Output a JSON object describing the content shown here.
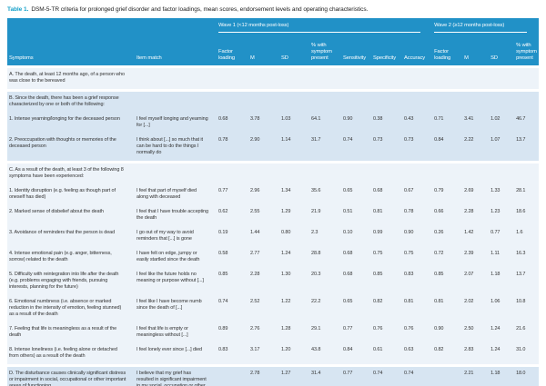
{
  "colors": {
    "header_bg": "#2191c7",
    "header_text": "#ffffff",
    "shade_blue": "#d7e5f2",
    "shade_light": "#edf3f9",
    "title_accent": "#14a0c9"
  },
  "title": {
    "label": "Table 1.",
    "text": "DSM-5-TR criteria for prolonged grief disorder and factor loadings, mean scores, endorsement levels and operating characteristics."
  },
  "table": {
    "spanners": [
      {
        "label": "Wave 1 (<12 months post-loss)",
        "span": 7
      },
      {
        "label": "Wave 2 (≥12 months post-loss)",
        "span": 4
      }
    ],
    "columns": [
      "Symptoms",
      "Item match",
      "Factor loading",
      "M",
      "SD",
      "% with symptom present",
      "Sensitivity",
      "Specificity",
      "Accuracy",
      "Factor loading",
      "M",
      "SD",
      "% with symptom present"
    ],
    "blocks": [
      {
        "id": "a",
        "shade": "light",
        "rows": [
          {
            "type": "section",
            "symptom": "A. The death, at least 12 months ago, of a person who was close to the bereaved"
          }
        ]
      },
      {
        "id": "b",
        "shade": "blue",
        "rows": [
          {
            "type": "section",
            "symptom": "B. Since the death, there has been a grief response characterized by one or both of the following:"
          },
          {
            "type": "item",
            "symptom": "1. Intense yearning/longing for the deceased person",
            "item": "I feel myself longing and yearning for [...]",
            "values": [
              "0.68",
              "3.78",
              "1.03",
              "64.1",
              "0.90",
              "0.38",
              "0.43",
              "0.71",
              "3.41",
              "1.02",
              "46.7"
            ]
          },
          {
            "type": "item",
            "symptom": "2. Preoccupation with thoughts or memories of the deceased person",
            "item": "I think about [...] so much that it can be hard to do the things I normally do",
            "values": [
              "0.78",
              "2.90",
              "1.14",
              "31.7",
              "0.74",
              "0.73",
              "0.73",
              "0.84",
              "2.22",
              "1.07",
              "13.7"
            ]
          }
        ]
      },
      {
        "id": "c",
        "shade": "light",
        "rows": [
          {
            "type": "section",
            "symptom": "C. As a result of the death, at least 3 of the following 8 symptoms have been experienced:"
          },
          {
            "type": "item",
            "symptom": "1. Identity disruption (e.g. feeling as though part of oneself has died)",
            "item": "I feel that part of myself died along with deceased",
            "values": [
              "0.77",
              "2.96",
              "1.34",
              "35.6",
              "0.65",
              "0.68",
              "0.67",
              "0.79",
              "2.69",
              "1.33",
              "28.1"
            ]
          },
          {
            "type": "item",
            "symptom": "2. Marked sense of disbelief about the death",
            "item": "I feel that I have trouble accepting the death",
            "values": [
              "0.62",
              "2.55",
              "1.29",
              "21.9",
              "0.51",
              "0.81",
              "0.78",
              "0.66",
              "2.28",
              "1.23",
              "18.6"
            ]
          },
          {
            "type": "item",
            "symptom": "3. Avoidance of reminders that the person is dead",
            "item": "I go out of my way to avoid reminders that [...] is gone",
            "values": [
              "0.19",
              "1.44",
              "0.80",
              "2.3",
              "0.10",
              "0.99",
              "0.90",
              "0.26",
              "1.42",
              "0.77",
              "1.6"
            ]
          },
          {
            "type": "item",
            "symptom": "4. Intense emotional pain (e.g. anger, bitterness, sorrow) related to the death",
            "item": "I have felt on edge, jumpy or easily startled since the death",
            "values": [
              "0.58",
              "2.77",
              "1.24",
              "28.8",
              "0.68",
              "0.75",
              "0.75",
              "0.72",
              "2.39",
              "1.11",
              "16.3"
            ]
          },
          {
            "type": "item",
            "symptom": "5. Difficulty with reintegration into life after the death (e.g. problems engaging with friends, pursuing interests, planning for the future)",
            "item": "I feel like the future holds no meaning or purpose without [...]",
            "values": [
              "0.85",
              "2.28",
              "1.30",
              "20.3",
              "0.68",
              "0.85",
              "0.83",
              "0.85",
              "2.07",
              "1.18",
              "13.7"
            ]
          },
          {
            "type": "item",
            "symptom": "6. Emotional numbness (i.e. absence or marked reduction in the intensity of emotion, feeling stunned) as a result of the death",
            "item": "I feel like I have become numb since the death of [...]",
            "values": [
              "0.74",
              "2.52",
              "1.22",
              "22.2",
              "0.65",
              "0.82",
              "0.81",
              "0.81",
              "2.02",
              "1.06",
              "10.8"
            ]
          },
          {
            "type": "item",
            "symptom": "7. Feeling that life is meaningless as a result of the death",
            "item": "I feel that life is empty or meaningless without [...]",
            "values": [
              "0.89",
              "2.76",
              "1.28",
              "29.1",
              "0.77",
              "0.76",
              "0.76",
              "0.90",
              "2.50",
              "1.24",
              "21.6"
            ]
          },
          {
            "type": "item",
            "symptom": "8. Intense loneliness (i.e. feeling alone or detached from others) as a result of the death",
            "item": "I feel lonely ever since [...] died",
            "values": [
              "0.83",
              "3.17",
              "1.20",
              "43.8",
              "0.84",
              "0.61",
              "0.63",
              "0.82",
              "2.83",
              "1.24",
              "31.0"
            ]
          }
        ]
      },
      {
        "id": "d",
        "shade": "blue",
        "rows": [
          {
            "type": "item",
            "symptom": "D. The disturbance causes clinically significant distress or impairment in social, occupational or other important areas of functioning",
            "item": "I believe that my grief has resulted in significant impairment in my social, occupation or other areas of functioning",
            "values": [
              "",
              "2.78",
              "1.27",
              "31.4",
              "0.77",
              "0.74",
              "0.74",
              "",
              "2.21",
              "1.18",
              "18.0"
            ]
          }
        ]
      }
    ]
  }
}
